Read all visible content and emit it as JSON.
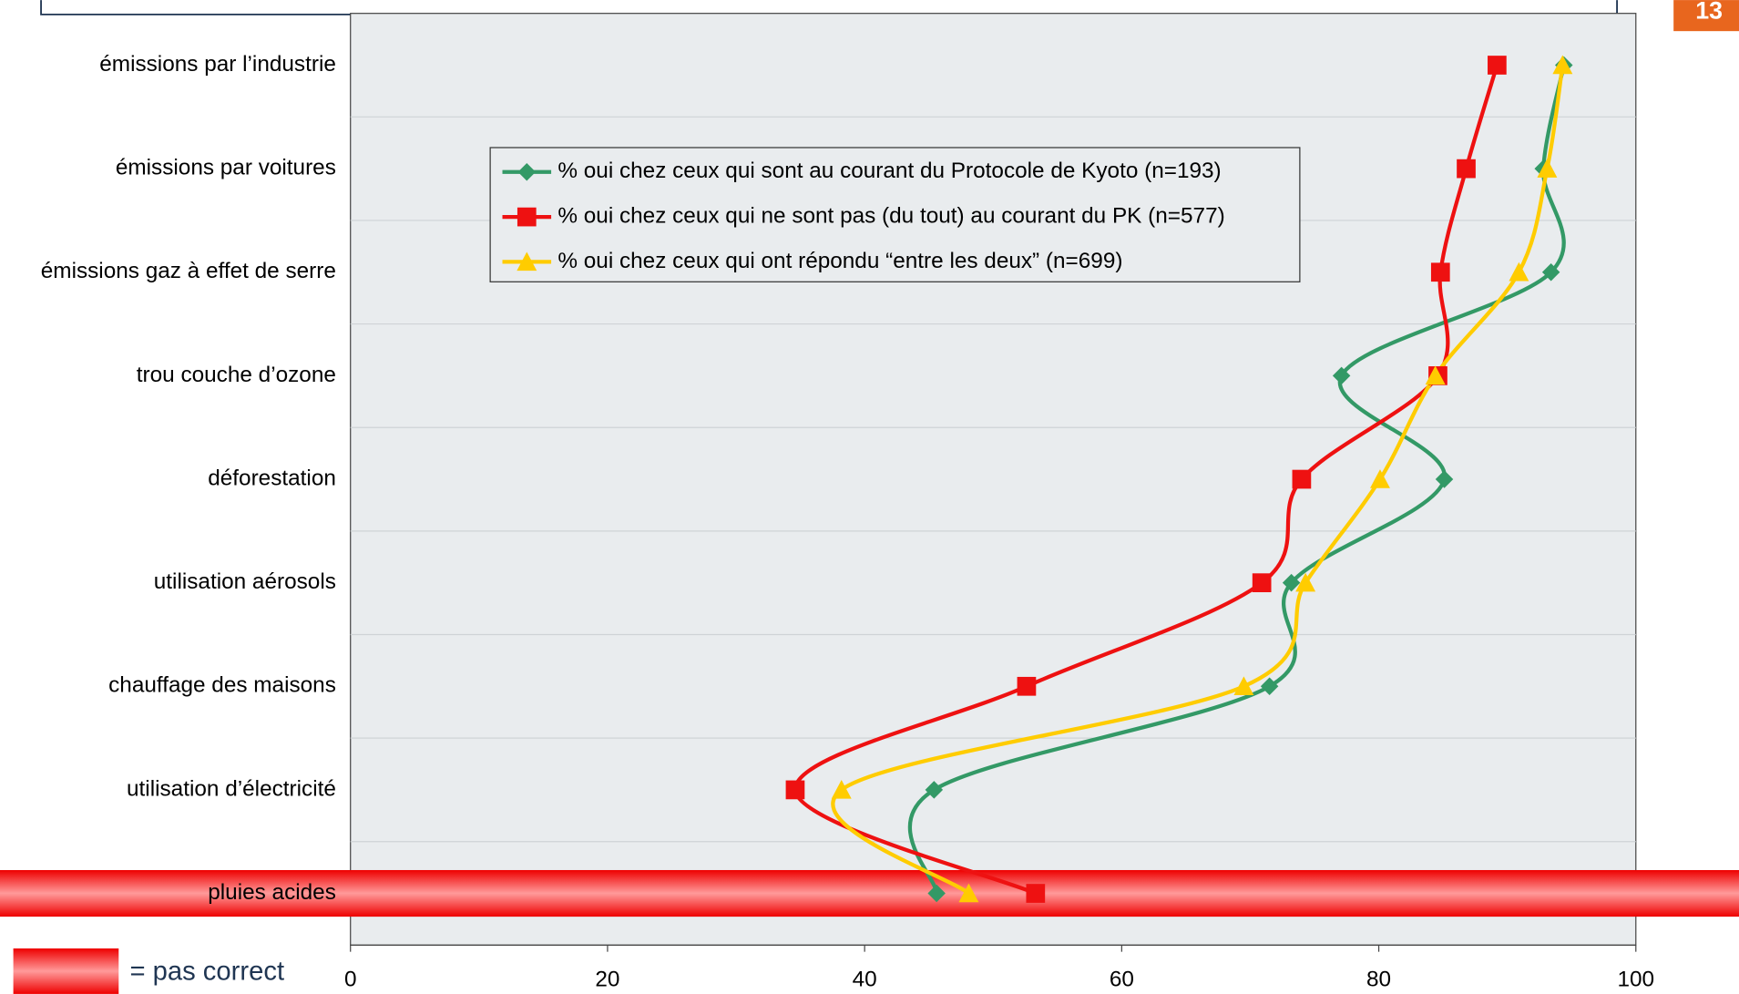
{
  "page_number": "13",
  "chart_data": {
    "type": "line",
    "categories": [
      "émissions par l’industrie",
      "émissions par voitures",
      "émissions gaz à effet de serre",
      "trou couche d’ozone",
      "déforestation",
      "utilisation aérosols",
      "chauffage des maisons",
      "utilisation d’électricité",
      "pluies acides"
    ],
    "series": [
      {
        "name": "% oui chez ceux qui sont au courant du Protocole de Kyoto (n=193)",
        "color": "#339966",
        "marker": "diamond",
        "values": [
          94.4,
          92.8,
          93.4,
          77.1,
          85.1,
          73.2,
          71.5,
          45.4,
          45.6
        ]
      },
      {
        "name": "% oui chez ceux qui ne sont pas (du tout) au courant du PK (n=577)",
        "color": "#ee1111",
        "marker": "square",
        "values": [
          89.2,
          86.8,
          84.8,
          84.6,
          74.0,
          70.9,
          52.6,
          34.6,
          53.3
        ]
      },
      {
        "name": "% oui chez ceux qui ont répondu “entre les deux” (n=699)",
        "color": "#ffcc00",
        "marker": "triangle",
        "values": [
          94.3,
          93.1,
          90.9,
          84.4,
          80.1,
          74.3,
          69.5,
          38.2,
          48.1
        ]
      }
    ],
    "xlim": [
      0,
      100
    ],
    "xticks": [
      0,
      20,
      40,
      60,
      80,
      100
    ],
    "smooth": true,
    "highlighted": [
      8
    ],
    "highlight_label": "= pas correct"
  }
}
